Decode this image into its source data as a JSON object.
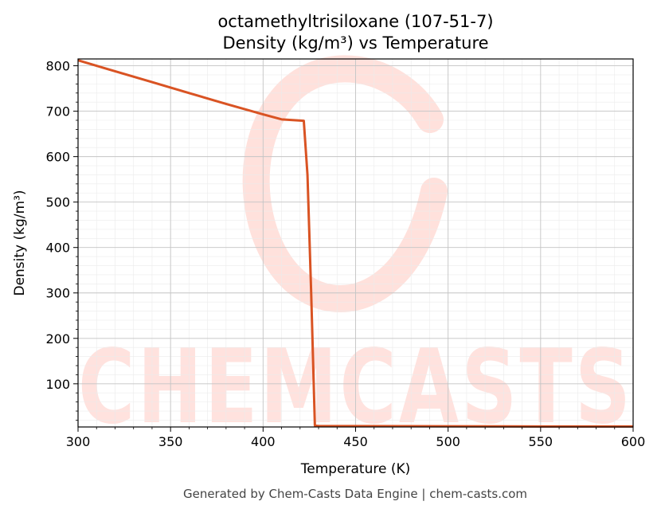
{
  "chart_data": {
    "type": "line",
    "title_line1": "octamethyltrisiloxane (107-51-7)",
    "title_line2": "Density (kg/m³) vs Temperature",
    "xlabel": "Temperature (K)",
    "ylabel": "Density (kg/m³)",
    "xlim": [
      300,
      600
    ],
    "ylim": [
      5,
      815
    ],
    "x_ticks": [
      300,
      350,
      400,
      450,
      500,
      550,
      600
    ],
    "y_ticks": [
      100,
      200,
      300,
      400,
      500,
      600,
      700,
      800
    ],
    "grid": true,
    "series": [
      {
        "color": "#d95323",
        "x": [
          300,
          320,
          340,
          360,
          380,
          400,
          410,
          422,
          424,
          426,
          428,
          430,
          450,
          500,
          550,
          600
        ],
        "y": [
          812,
          788,
          764,
          740,
          716,
          693,
          682,
          679,
          560,
          300,
          8,
          7,
          7,
          6.5,
          6.2,
          6
        ]
      }
    ]
  },
  "watermark": {
    "text": "CHEMCASTS",
    "color": "#ffd9d3"
  },
  "footer": "Generated by Chem-Casts Data Engine | chem-casts.com"
}
